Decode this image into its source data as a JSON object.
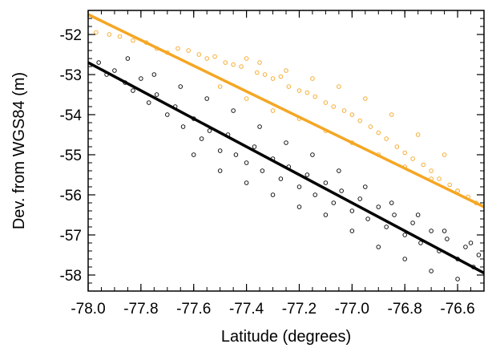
{
  "chart_data": {
    "type": "scatter",
    "title": "",
    "xlabel": "Latitude (degrees)",
    "ylabel": "Dev. from WGS84 (m)",
    "xlim": [
      -78.0,
      -76.5
    ],
    "ylim": [
      -58.4,
      -51.4
    ],
    "x_ticks": [
      -78.0,
      -77.8,
      -77.6,
      -77.4,
      -77.2,
      -77.0,
      -76.8,
      -76.6
    ],
    "x_tick_labels": [
      "-78.0",
      "-77.8",
      "-77.6",
      "-77.4",
      "-77.2",
      "-77.0",
      "-76.8",
      "-76.6"
    ],
    "y_ticks": [
      -52,
      -53,
      -54,
      -55,
      -56,
      -57,
      -58
    ],
    "y_tick_labels": [
      "-52",
      "-53",
      "-54",
      "-55",
      "-56",
      "-57",
      "-58"
    ],
    "grid": false,
    "legend": "none",
    "series": [
      {
        "kind": "scatter",
        "color": "#f5a623",
        "points": [
          [
            -77.97,
            -51.95
          ],
          [
            -77.92,
            -52.0
          ],
          [
            -77.88,
            -52.05
          ],
          [
            -77.83,
            -52.15
          ],
          [
            -77.78,
            -52.2
          ],
          [
            -77.74,
            -52.35
          ],
          [
            -77.7,
            -52.45
          ],
          [
            -77.66,
            -52.35
          ],
          [
            -77.62,
            -52.4
          ],
          [
            -77.58,
            -52.5
          ],
          [
            -77.55,
            -52.6
          ],
          [
            -77.52,
            -52.55
          ],
          [
            -77.48,
            -52.7
          ],
          [
            -77.45,
            -52.75
          ],
          [
            -77.42,
            -52.8
          ],
          [
            -77.4,
            -52.6
          ],
          [
            -77.36,
            -52.95
          ],
          [
            -77.33,
            -53.0
          ],
          [
            -77.3,
            -53.1
          ],
          [
            -77.27,
            -53.05
          ],
          [
            -77.24,
            -53.3
          ],
          [
            -77.2,
            -53.4
          ],
          [
            -77.17,
            -53.45
          ],
          [
            -77.14,
            -53.55
          ],
          [
            -77.1,
            -53.7
          ],
          [
            -77.07,
            -53.8
          ],
          [
            -77.03,
            -53.9
          ],
          [
            -77.0,
            -54.0
          ],
          [
            -76.97,
            -54.15
          ],
          [
            -76.93,
            -54.3
          ],
          [
            -76.9,
            -54.45
          ],
          [
            -76.87,
            -54.6
          ],
          [
            -76.83,
            -54.8
          ],
          [
            -76.8,
            -54.95
          ],
          [
            -76.77,
            -55.1
          ],
          [
            -76.73,
            -55.25
          ],
          [
            -76.7,
            -55.4
          ],
          [
            -76.67,
            -55.6
          ],
          [
            -76.63,
            -55.75
          ],
          [
            -76.6,
            -55.9
          ],
          [
            -76.56,
            -56.05
          ],
          [
            -76.53,
            -56.2
          ],
          [
            -77.5,
            -53.3
          ],
          [
            -77.4,
            -53.6
          ],
          [
            -77.3,
            -53.9
          ],
          [
            -77.2,
            -54.1
          ],
          [
            -77.1,
            -54.4
          ],
          [
            -77.0,
            -54.7
          ],
          [
            -76.9,
            -55.0
          ],
          [
            -76.8,
            -55.3
          ],
          [
            -76.7,
            -55.6
          ],
          [
            -76.6,
            -55.9
          ],
          [
            -77.35,
            -52.7
          ],
          [
            -77.25,
            -52.9
          ],
          [
            -77.15,
            -53.1
          ],
          [
            -77.05,
            -53.3
          ],
          [
            -76.95,
            -53.6
          ],
          [
            -76.85,
            -54.0
          ],
          [
            -76.75,
            -54.5
          ],
          [
            -76.65,
            -55.0
          ]
        ]
      },
      {
        "kind": "scatter",
        "color": "#000000",
        "points": [
          [
            -77.96,
            -52.7
          ],
          [
            -77.93,
            -53.0
          ],
          [
            -77.9,
            -52.9
          ],
          [
            -77.86,
            -53.2
          ],
          [
            -77.83,
            -53.4
          ],
          [
            -77.8,
            -53.1
          ],
          [
            -77.77,
            -53.7
          ],
          [
            -77.74,
            -53.5
          ],
          [
            -77.7,
            -54.0
          ],
          [
            -77.67,
            -53.8
          ],
          [
            -77.64,
            -54.3
          ],
          [
            -77.6,
            -54.1
          ],
          [
            -77.57,
            -54.6
          ],
          [
            -77.54,
            -54.4
          ],
          [
            -77.5,
            -54.9
          ],
          [
            -77.47,
            -54.5
          ],
          [
            -77.44,
            -55.0
          ],
          [
            -77.4,
            -55.2
          ],
          [
            -77.37,
            -54.8
          ],
          [
            -77.34,
            -55.4
          ],
          [
            -77.3,
            -55.1
          ],
          [
            -77.27,
            -55.6
          ],
          [
            -77.24,
            -55.3
          ],
          [
            -77.2,
            -55.8
          ],
          [
            -77.17,
            -55.5
          ],
          [
            -77.14,
            -56.0
          ],
          [
            -77.1,
            -55.7
          ],
          [
            -77.07,
            -56.2
          ],
          [
            -77.04,
            -55.9
          ],
          [
            -77.0,
            -56.4
          ],
          [
            -76.97,
            -56.1
          ],
          [
            -76.94,
            -56.6
          ],
          [
            -76.9,
            -56.3
          ],
          [
            -76.87,
            -56.8
          ],
          [
            -76.84,
            -56.5
          ],
          [
            -76.8,
            -57.0
          ],
          [
            -76.77,
            -56.7
          ],
          [
            -76.74,
            -57.2
          ],
          [
            -76.7,
            -56.9
          ],
          [
            -76.67,
            -57.4
          ],
          [
            -76.64,
            -57.1
          ],
          [
            -76.6,
            -57.6
          ],
          [
            -76.57,
            -57.3
          ],
          [
            -76.54,
            -57.8
          ],
          [
            -76.52,
            -57.5
          ],
          [
            -77.85,
            -52.6
          ],
          [
            -77.75,
            -53.0
          ],
          [
            -77.65,
            -53.3
          ],
          [
            -77.55,
            -53.6
          ],
          [
            -77.45,
            -53.9
          ],
          [
            -77.35,
            -54.3
          ],
          [
            -77.25,
            -54.7
          ],
          [
            -77.15,
            -55.0
          ],
          [
            -77.05,
            -55.4
          ],
          [
            -76.95,
            -55.8
          ],
          [
            -76.85,
            -56.2
          ],
          [
            -76.75,
            -56.5
          ],
          [
            -76.65,
            -56.9
          ],
          [
            -76.55,
            -57.2
          ],
          [
            -77.6,
            -55.0
          ],
          [
            -77.5,
            -55.4
          ],
          [
            -77.4,
            -55.7
          ],
          [
            -77.3,
            -56.0
          ],
          [
            -77.2,
            -56.3
          ],
          [
            -77.1,
            -56.5
          ],
          [
            -77.0,
            -56.9
          ],
          [
            -76.9,
            -57.3
          ],
          [
            -76.8,
            -57.6
          ],
          [
            -76.7,
            -57.9
          ],
          [
            -76.6,
            -58.1
          ]
        ]
      },
      {
        "kind": "line",
        "color": "#f5a623",
        "x": [
          -78.0,
          -76.5
        ],
        "y": [
          -51.5,
          -56.3
        ]
      },
      {
        "kind": "line",
        "color": "#000000",
        "x": [
          -78.0,
          -76.5
        ],
        "y": [
          -52.7,
          -57.95
        ]
      }
    ]
  }
}
